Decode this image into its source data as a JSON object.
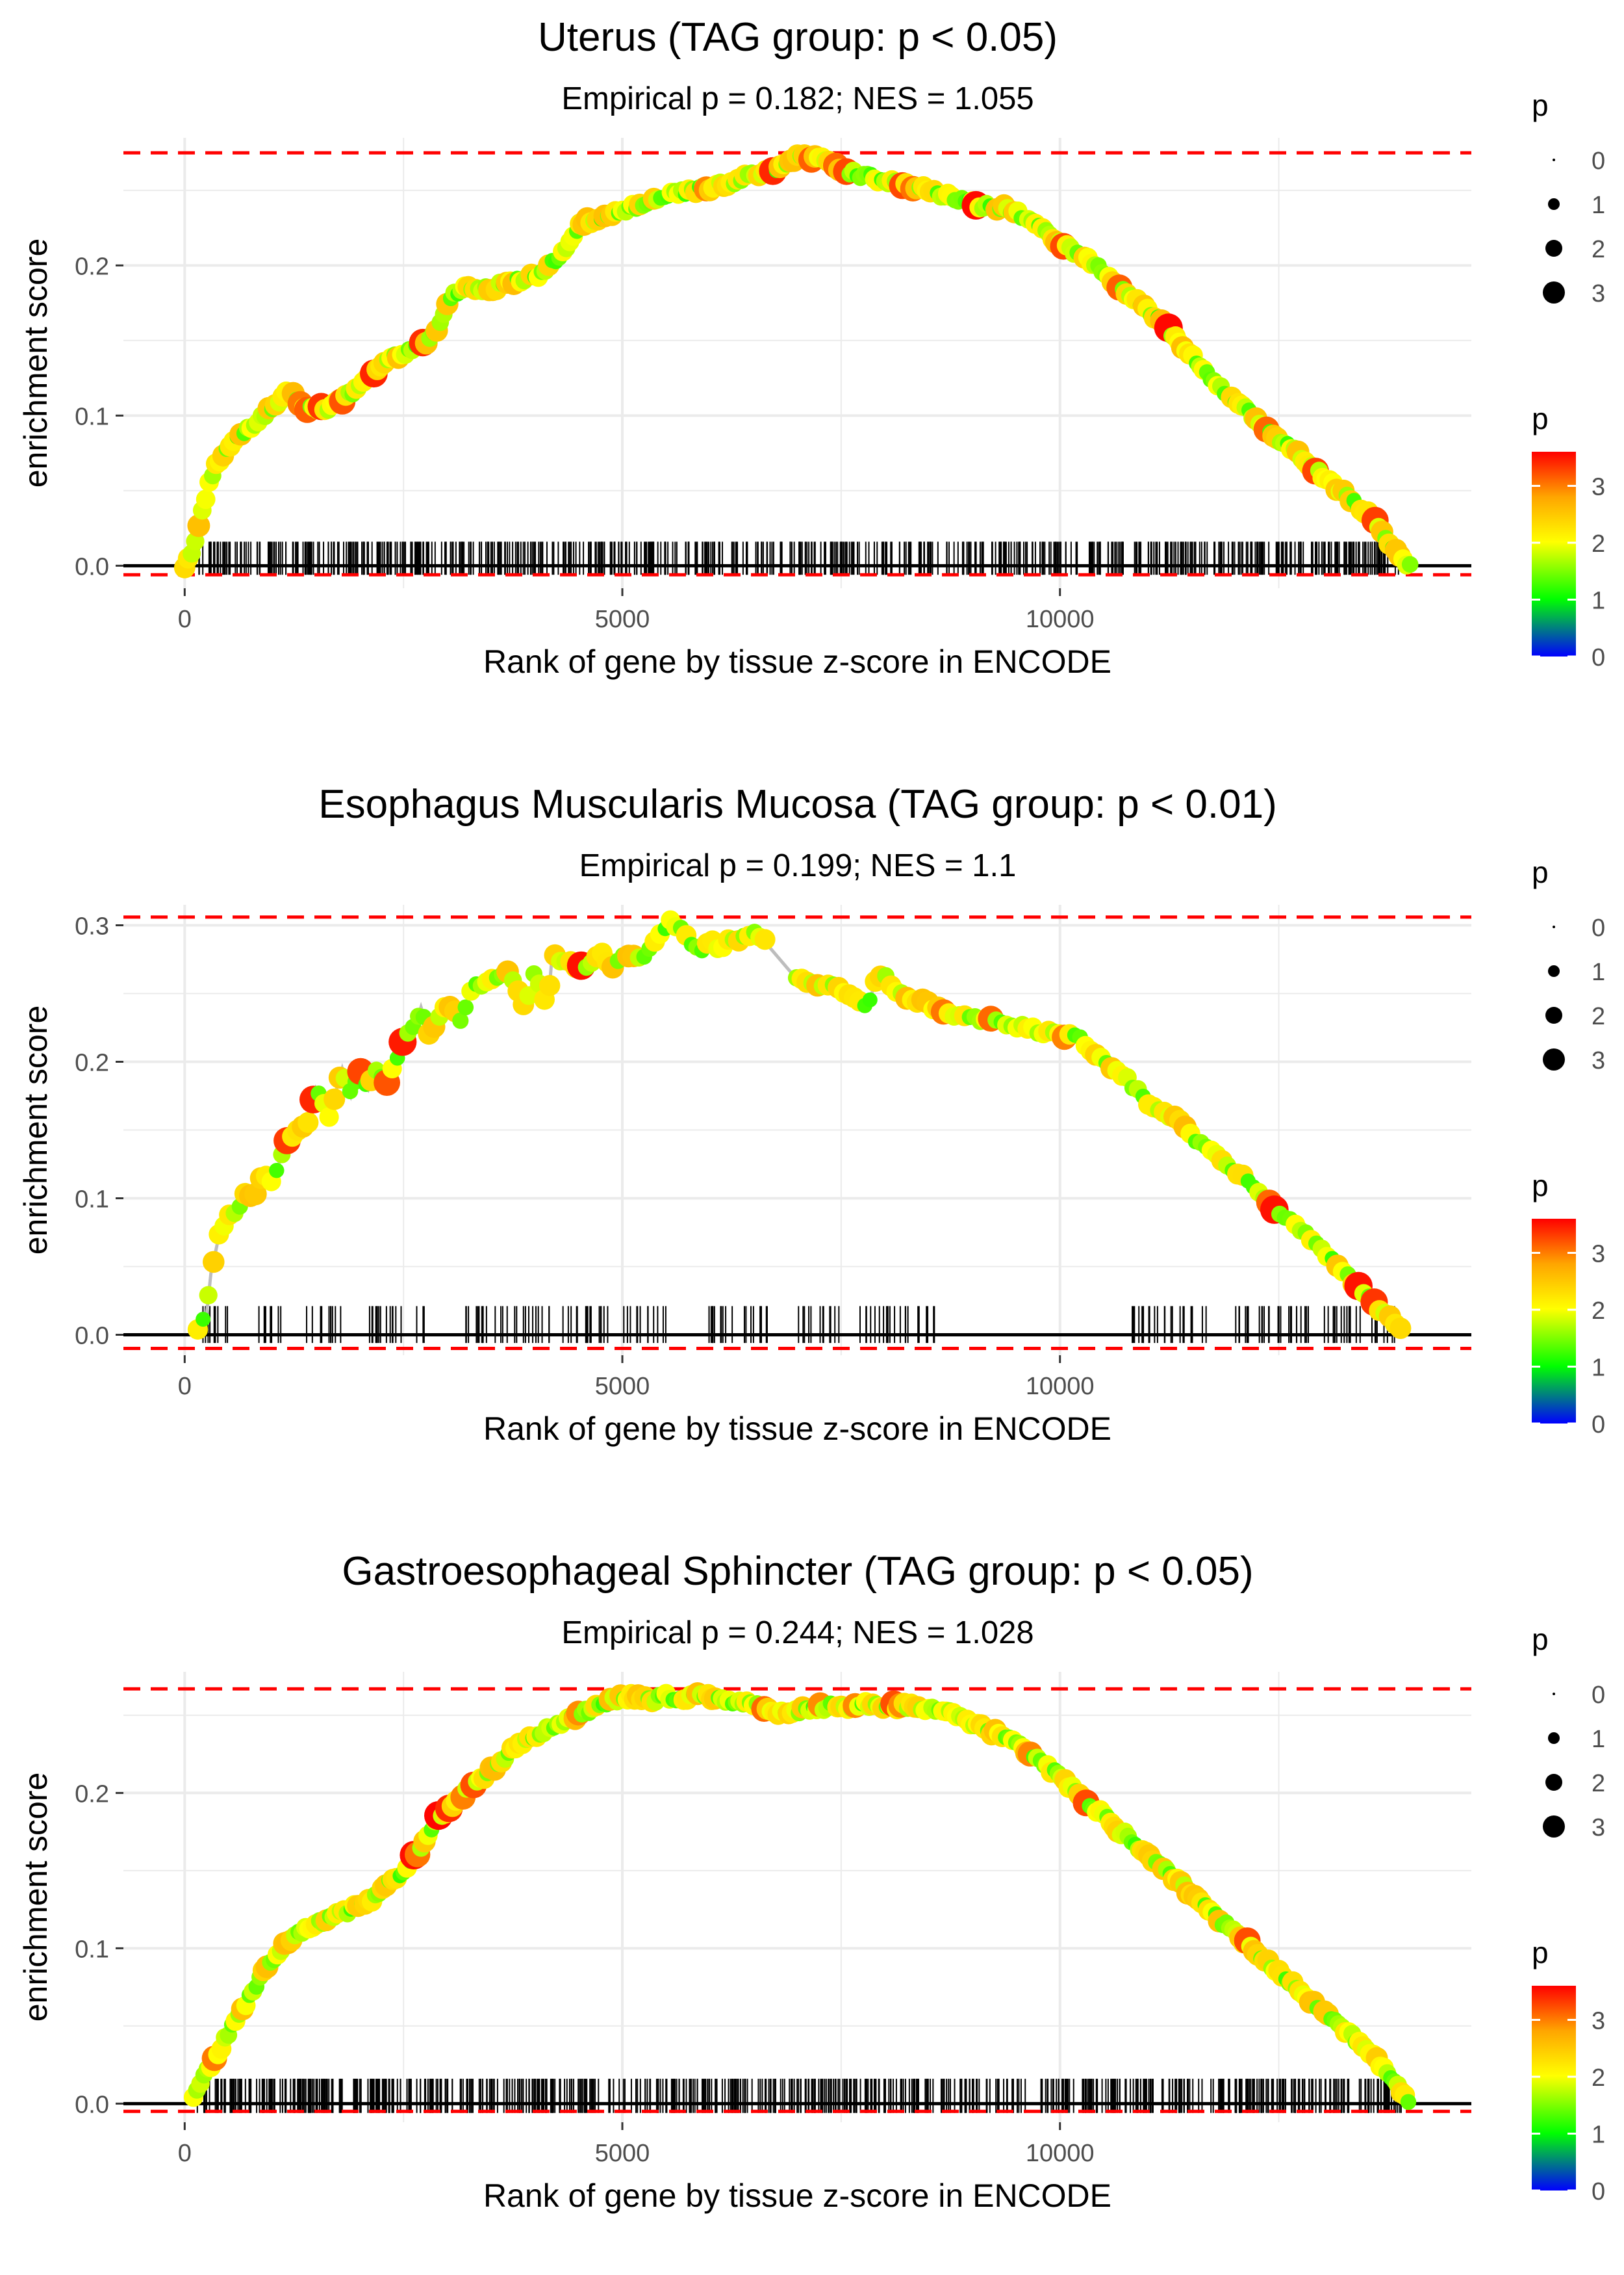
{
  "figure": {
    "colors": {
      "background": "#ffffff",
      "grid": "#ebebeb",
      "threshold_line": "#ff0000",
      "zero_line": "#000000",
      "running_line": "#bdbdbd",
      "ticks": "#000000",
      "text": "#000000",
      "axis_text": "#4d4d4d",
      "gradient": [
        "#0000ff",
        "#00ff00",
        "#ffff00",
        "#ff0000"
      ]
    }
  },
  "chart_data": [
    {
      "type": "line",
      "title": "Uterus (TAG group: p < 0.05)",
      "subtitle": "Empirical p = 0.182; NES = 1.055",
      "xlabel": "Rank of gene by tissue z-score in ENCODE",
      "ylabel": "enrichment score",
      "xlim": [
        -700,
        14700
      ],
      "ylim": [
        -0.015,
        0.285
      ],
      "x_ticks": [
        0,
        5000,
        10000
      ],
      "x_tick_labels": [
        "0",
        "5000",
        "10000"
      ],
      "y_ticks": [
        0,
        0.1,
        0.2
      ],
      "y_tick_labels": [
        "0.0",
        "0.1",
        "0.2"
      ],
      "threshold_lines": [
        0.275,
        -0.006
      ],
      "series": [
        {
          "name": "running enrichment score",
          "x": [
            0,
            100,
            300,
            500,
            800,
            1100,
            1200,
            1300,
            1450,
            1600,
            1800,
            2000,
            2200,
            2300,
            2500,
            2600,
            2800,
            2950,
            3050,
            3200,
            3350,
            3500,
            3700,
            3900,
            4100,
            4250,
            4400,
            4500,
            4600,
            4800,
            5000,
            5200,
            5400,
            5600,
            5800,
            6000,
            6200,
            6500,
            6800,
            7000,
            7300,
            7600,
            7900,
            8200,
            8500,
            8800,
            9100,
            9400,
            9600,
            9800,
            10000,
            10300,
            10600,
            10900,
            11200,
            11500,
            11800,
            12100,
            12400,
            12700,
            13000,
            13300,
            13600,
            13800,
            14000
          ],
          "y": [
            0.0,
            0.01,
            0.06,
            0.08,
            0.095,
            0.11,
            0.117,
            0.107,
            0.105,
            0.104,
            0.11,
            0.12,
            0.13,
            0.138,
            0.14,
            0.145,
            0.15,
            0.165,
            0.18,
            0.185,
            0.183,
            0.185,
            0.188,
            0.192,
            0.195,
            0.205,
            0.215,
            0.225,
            0.23,
            0.232,
            0.237,
            0.24,
            0.245,
            0.248,
            0.25,
            0.252,
            0.255,
            0.26,
            0.265,
            0.272,
            0.27,
            0.262,
            0.258,
            0.255,
            0.25,
            0.245,
            0.24,
            0.238,
            0.232,
            0.225,
            0.215,
            0.205,
            0.19,
            0.175,
            0.16,
            0.14,
            0.12,
            0.105,
            0.09,
            0.075,
            0.06,
            0.045,
            0.03,
            0.012,
            0.0
          ]
        }
      ],
      "gene_ranks_count": 650,
      "gene_rank_span": [
        100,
        13900
      ],
      "size_legend": {
        "title": "p",
        "labels": [
          "0",
          "1",
          "2",
          "3"
        ]
      },
      "color_legend": {
        "title": "p",
        "labels": [
          "3",
          "2",
          "1",
          "0"
        ],
        "range": [
          0,
          3.6
        ]
      }
    },
    {
      "type": "line",
      "title": "Esophagus Muscularis Mucosa (TAG group: p < 0.01)",
      "subtitle": "Empirical p = 0.199; NES = 1.1",
      "xlabel": "Rank of gene by tissue z-score in ENCODE",
      "ylabel": "enrichment score",
      "xlim": [
        -700,
        14700
      ],
      "ylim": [
        -0.015,
        0.315
      ],
      "x_ticks": [
        0,
        5000,
        10000
      ],
      "x_tick_labels": [
        "0",
        "5000",
        "10000"
      ],
      "y_ticks": [
        0,
        0.1,
        0.2,
        0.3
      ],
      "y_tick_labels": [
        "0.0",
        "0.1",
        "0.2",
        "0.3"
      ],
      "threshold_lines": [
        0.306,
        -0.01
      ],
      "series": [
        {
          "name": "running enrichment score",
          "x": [
            150,
            250,
            300,
            350,
            400,
            500,
            600,
            700,
            800,
            900,
            1000,
            1100,
            1200,
            1300,
            1400,
            1500,
            1650,
            1800,
            1900,
            2000,
            2100,
            2200,
            2300,
            2400,
            2500,
            2650,
            2700,
            2800,
            3000,
            3150,
            3300,
            3500,
            3700,
            3900,
            4000,
            4150,
            4200,
            4300,
            4450,
            4600,
            4750,
            4900,
            5050,
            5200,
            5350,
            5500,
            5550,
            5900,
            6000,
            6100,
            6200,
            6400,
            6500,
            6600,
            7000,
            7200,
            7400,
            7600,
            7800,
            7900,
            8000,
            8100,
            8400,
            8600,
            8800,
            9000,
            9200,
            9400,
            9600,
            9800,
            10000,
            10200,
            10800,
            11000,
            11300,
            11600,
            11900,
            12200,
            12500,
            12800,
            13100,
            13400,
            13700,
            13900
          ],
          "y": [
            0.005,
            0.015,
            0.045,
            0.06,
            0.075,
            0.088,
            0.09,
            0.105,
            0.1,
            0.12,
            0.11,
            0.13,
            0.145,
            0.15,
            0.155,
            0.18,
            0.16,
            0.195,
            0.175,
            0.195,
            0.18,
            0.195,
            0.185,
            0.2,
            0.215,
            0.23,
            0.24,
            0.22,
            0.245,
            0.23,
            0.255,
            0.26,
            0.265,
            0.24,
            0.265,
            0.24,
            0.28,
            0.275,
            0.27,
            0.27,
            0.28,
            0.27,
            0.28,
            0.275,
            0.285,
            0.3,
            0.305,
            0.28,
            0.29,
            0.28,
            0.29,
            0.29,
            0.295,
            0.29,
            0.26,
            0.258,
            0.255,
            0.25,
            0.24,
            0.26,
            0.265,
            0.25,
            0.245,
            0.238,
            0.235,
            0.232,
            0.23,
            0.228,
            0.225,
            0.222,
            0.22,
            0.218,
            0.185,
            0.17,
            0.16,
            0.14,
            0.125,
            0.11,
            0.09,
            0.075,
            0.055,
            0.035,
            0.015,
            0.005
          ]
        }
      ],
      "gene_ranks_count": 220,
      "gene_rank_span": [
        150,
        13900
      ],
      "size_legend": {
        "title": "p",
        "labels": [
          "0",
          "1",
          "2",
          "3"
        ]
      },
      "color_legend": {
        "title": "p",
        "labels": [
          "3",
          "2",
          "1",
          "0"
        ],
        "range": [
          0,
          3.6
        ]
      }
    },
    {
      "type": "line",
      "title": "Gastroesophageal Sphincter (TAG group: p < 0.05)",
      "subtitle": "Empirical p = 0.244; NES = 1.028",
      "xlabel": "Rank of gene by tissue z-score in ENCODE",
      "ylabel": "enrichment score",
      "xlim": [
        -700,
        14700
      ],
      "ylim": [
        -0.012,
        0.278
      ],
      "x_ticks": [
        0,
        5000,
        10000
      ],
      "x_tick_labels": [
        "0",
        "5000",
        "10000"
      ],
      "y_ticks": [
        0,
        0.1,
        0.2
      ],
      "y_tick_labels": [
        "0.0",
        "0.1",
        "0.2"
      ],
      "threshold_lines": [
        0.267,
        -0.005
      ],
      "series": [
        {
          "name": "running enrichment score",
          "x": [
            100,
            300,
            500,
            700,
            900,
            1100,
            1300,
            1500,
            1700,
            1900,
            2100,
            2300,
            2500,
            2700,
            2900,
            3100,
            3300,
            3500,
            3700,
            3900,
            4100,
            4300,
            4500,
            4700,
            4900,
            5100,
            5300,
            5500,
            5700,
            5900,
            6000,
            6200,
            6400,
            6600,
            6800,
            7000,
            7200,
            7400,
            7600,
            7800,
            8000,
            8200,
            8400,
            8600,
            8800,
            9000,
            9200,
            9400,
            9600,
            9800,
            10000,
            10300,
            10600,
            10900,
            11200,
            11500,
            11800,
            12100,
            12400,
            12700,
            13000,
            13300,
            13600,
            13800,
            14000
          ],
          "y": [
            0.005,
            0.025,
            0.045,
            0.065,
            0.085,
            0.1,
            0.11,
            0.115,
            0.12,
            0.125,
            0.13,
            0.14,
            0.15,
            0.165,
            0.185,
            0.195,
            0.205,
            0.215,
            0.225,
            0.235,
            0.24,
            0.245,
            0.25,
            0.255,
            0.26,
            0.262,
            0.26,
            0.262,
            0.26,
            0.265,
            0.262,
            0.26,
            0.258,
            0.255,
            0.252,
            0.253,
            0.255,
            0.256,
            0.255,
            0.257,
            0.255,
            0.256,
            0.255,
            0.253,
            0.25,
            0.245,
            0.24,
            0.235,
            0.228,
            0.22,
            0.21,
            0.195,
            0.18,
            0.165,
            0.15,
            0.135,
            0.12,
            0.105,
            0.09,
            0.075,
            0.06,
            0.045,
            0.03,
            0.015,
            0.0
          ]
        }
      ],
      "gene_ranks_count": 700,
      "gene_rank_span": [
        100,
        13900
      ],
      "size_legend": {
        "title": "p",
        "labels": [
          "0",
          "1",
          "2",
          "3"
        ]
      },
      "color_legend": {
        "title": "p",
        "labels": [
          "3",
          "2",
          "1",
          "0"
        ],
        "range": [
          0,
          3.6
        ]
      }
    }
  ]
}
